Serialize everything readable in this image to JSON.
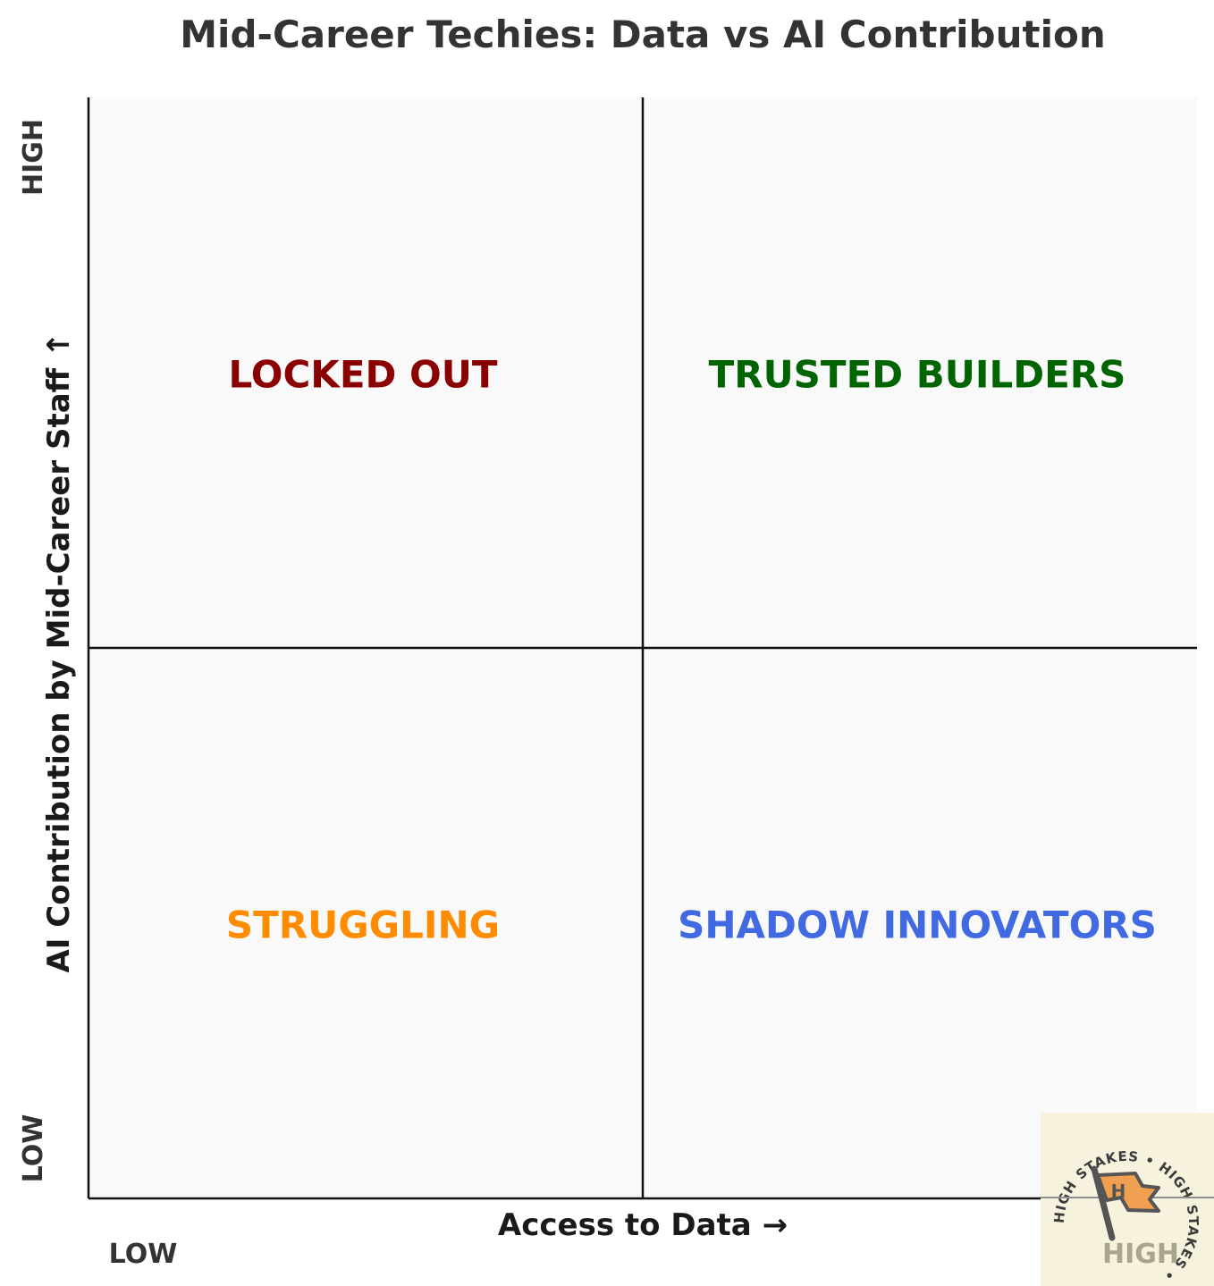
{
  "chart_data": {
    "type": "quadrant",
    "title": "Mid-Career Techies: Data vs AI Contribution",
    "xlabel": "Access to Data →",
    "ylabel": "AI Contribution by Mid-Career Staff ↑",
    "x_ticks": {
      "low": "LOW",
      "high": "HIGH"
    },
    "y_ticks": {
      "low": "LOW",
      "high": "HIGH"
    },
    "xlim": [
      0,
      1
    ],
    "ylim": [
      0,
      1
    ],
    "divider": {
      "x": 0.5,
      "y": 0.5
    },
    "quadrants": [
      {
        "key": "top-left",
        "label": "LOCKED OUT",
        "color": "#8b0000",
        "x": 0.25,
        "y": 0.75
      },
      {
        "key": "top-right",
        "label": "TRUSTED BUILDERS",
        "color": "#006400",
        "x": 0.75,
        "y": 0.75
      },
      {
        "key": "bottom-left",
        "label": "STRUGGLING",
        "color": "#ff8c00",
        "x": 0.25,
        "y": 0.25
      },
      {
        "key": "bottom-right",
        "label": "SHADOW INNOVATORS",
        "color": "#4169e1",
        "x": 0.75,
        "y": 0.25
      }
    ],
    "background_color": "#f9f9f9"
  },
  "badge": {
    "ring_text": "HIGH STAKES • HIGH STAKES • ",
    "word": "HIGH",
    "background_color": "#f6f2dd",
    "accent_color": "#f0a050"
  }
}
